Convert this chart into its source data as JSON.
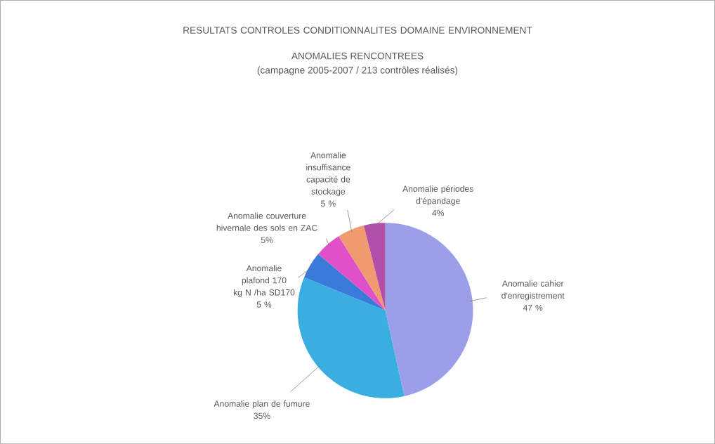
{
  "chart_data": {
    "type": "pie",
    "title": "RESULTATS CONTROLES CONDITIONNALITES DOMAINE ENVIRONNEMENT",
    "subtitle": "ANOMALIES RENCONTREES",
    "annotations": [
      "(campagne 2005-2007 / 213 contrôles réalisés)"
    ],
    "categories": [
      "Anomalie cahier d'enregistrement",
      "Anomalie plan de fumure",
      "Anomalie plafond 170 kg N /ha SD170",
      "Anomalie couverture hivernale des sols en ZAC",
      "Anomalie insuffisance capacité de stockage",
      "Anomalie périodes d'épandage"
    ],
    "values": [
      47,
      35,
      5,
      5,
      5,
      4
    ],
    "value_labels": [
      "47 %",
      "35%",
      "5 %",
      "5%",
      "5 %",
      "4%"
    ],
    "colors": [
      "#9b9fe8",
      "#3aaee0",
      "#3a7ad8",
      "#e050c8",
      "#f09a70",
      "#b050a8"
    ]
  }
}
